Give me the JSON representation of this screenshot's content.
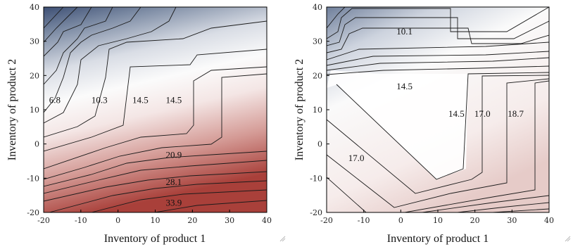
{
  "chart_data": [
    {
      "type": "contour",
      "xlabel": "Inventory of product 1",
      "ylabel": "Inventory of product 2",
      "xlim": [
        -20,
        40
      ],
      "ylim": [
        -20,
        40
      ],
      "xticks": [
        "-20",
        "-10",
        "0",
        "10",
        "20",
        "30",
        "40"
      ],
      "yticks": [
        "-20",
        "-10",
        "0",
        "10",
        "20",
        "30",
        "40"
      ],
      "colormap": {
        "low": "#3d4f74",
        "mid": "#ffffff",
        "high": "#a9403a"
      },
      "contour_labels": [
        {
          "text": "6.8",
          "x": -17,
          "y": 13
        },
        {
          "text": "10.3",
          "x": -5,
          "y": 13
        },
        {
          "text": "14.5",
          "x": 6,
          "y": 13
        },
        {
          "text": "14.5",
          "x": 15,
          "y": 13
        },
        {
          "text": "20.9",
          "x": 15,
          "y": -3
        },
        {
          "text": "28.1",
          "x": 15,
          "y": -11
        },
        {
          "text": "33.9",
          "x": 15,
          "y": -17
        }
      ]
    },
    {
      "type": "contour",
      "xlabel": "Inventory of product 1",
      "ylabel": "Inventory of product 2",
      "xlim": [
        -20,
        40
      ],
      "ylim": [
        -20,
        40
      ],
      "xticks": [
        "-20",
        "-10",
        "0",
        "10",
        "20",
        "30",
        "40"
      ],
      "yticks": [
        "-20",
        "-10",
        "0",
        "10",
        "20",
        "30",
        "40"
      ],
      "colormap": {
        "low": "#3d4f74",
        "mid": "#ffffff",
        "high": "#a9403a"
      },
      "contour_labels": [
        {
          "text": "10.1",
          "x": 1,
          "y": 33
        },
        {
          "text": "14.5",
          "x": 1,
          "y": 17
        },
        {
          "text": "14.5",
          "x": 15,
          "y": 9
        },
        {
          "text": "17.0",
          "x": 22,
          "y": 9
        },
        {
          "text": "18.7",
          "x": 31,
          "y": 9
        },
        {
          "text": "17.0",
          "x": -12,
          "y": -4
        }
      ]
    }
  ]
}
